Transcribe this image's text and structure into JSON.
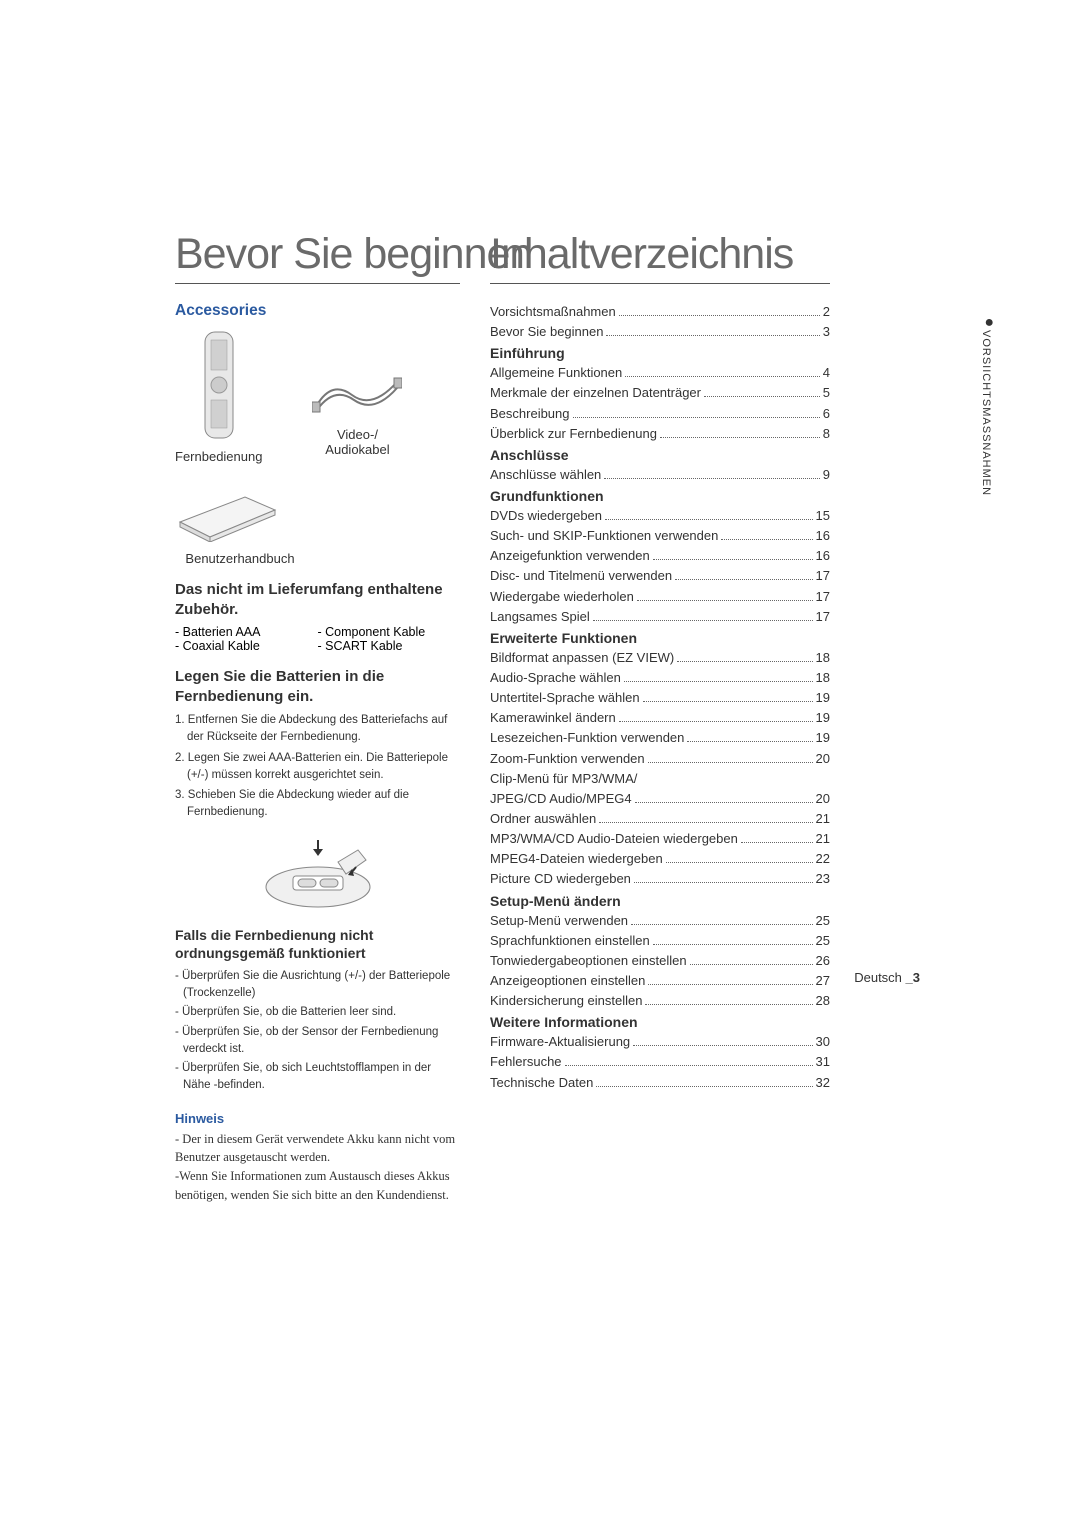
{
  "left": {
    "title": "Bevor Sie beginnen",
    "accessories_heading": "Accessories",
    "remote_label": "Fernbedienung",
    "cable_label1": "Video-/",
    "cable_label2": "Audiokabel",
    "manual_label": "Benutzerhandbuch",
    "not_included_heading": "Das nicht im Lieferumfang enthaltene Zubehör.",
    "not_included_col1": [
      "- Batterien AAA",
      "- Coaxial Kable"
    ],
    "not_included_col2": [
      "- Component Kable",
      "- SCART Kable"
    ],
    "battery_heading": "Legen Sie die Batterien in die Fernbedienung ein.",
    "battery_steps": [
      "1. Entfernen Sie die Abdeckung des Batteriefachs auf der Rückseite der Fernbedienung.",
      "2. Legen Sie zwei AAA-Batterien ein. Die Batteriepole (+/-) müssen korrekt ausgerichtet sein.",
      "3. Schieben Sie die Abdeckung wieder auf die Fernbedienung."
    ],
    "malfunction_heading": "Falls die Fernbedienung nicht ordnungsgemäß funktioniert",
    "malfunction_items": [
      "- Überprüfen Sie die Ausrichtung (+/-) der Batteriepole (Trockenzelle)",
      "- Überprüfen Sie, ob die Batterien leer sind.",
      "- Überprüfen Sie, ob der Sensor der Fernbedienung verdeckt ist.",
      "- Überprüfen Sie, ob sich Leuchtstofflampen in der Nähe -befinden."
    ],
    "hinweis_title": "Hinweis",
    "hinweis_body": [
      "- Der in diesem Gerät verwendete Akku kann nicht vom Benutzer ausgetauscht werden.",
      "-Wenn Sie Informationen zum Austausch dieses Akkus benötigen, wenden Sie sich bitte an den Kundendienst."
    ]
  },
  "right": {
    "title": "Inhaltverzeichnis",
    "toc": [
      {
        "type": "item",
        "label": "Vorsichtsmaßnahmen",
        "page": "2"
      },
      {
        "type": "item",
        "label": "Bevor Sie beginnen",
        "page": "3"
      },
      {
        "type": "heading",
        "label": "Einführung"
      },
      {
        "type": "item",
        "label": "Allgemeine Funktionen",
        "page": "4"
      },
      {
        "type": "item",
        "label": "Merkmale der einzelnen Datenträger",
        "page": "5"
      },
      {
        "type": "item",
        "label": "Beschreibung",
        "page": "6"
      },
      {
        "type": "item",
        "label": "Überblick zur Fernbedienung",
        "page": "8"
      },
      {
        "type": "heading",
        "label": "Anschlüsse"
      },
      {
        "type": "item",
        "label": "Anschlüsse wählen",
        "page": "9"
      },
      {
        "type": "heading",
        "label": "Grundfunktionen"
      },
      {
        "type": "item",
        "label": "DVDs wiedergeben",
        "page": "15"
      },
      {
        "type": "item",
        "label": "Such- und SKIP-Funktionen verwenden",
        "page": "16"
      },
      {
        "type": "item",
        "label": "Anzeigefunktion verwenden",
        "page": "16"
      },
      {
        "type": "item",
        "label": "Disc- und Titelmenü verwenden",
        "page": "17"
      },
      {
        "type": "item",
        "label": "Wiedergabe wiederholen",
        "page": "17"
      },
      {
        "type": "item",
        "label": "Langsames Spiel",
        "page": "17"
      },
      {
        "type": "heading",
        "label": "Erweiterte Funktionen"
      },
      {
        "type": "item",
        "label": "Bildformat anpassen (EZ VIEW)",
        "page": "18"
      },
      {
        "type": "item",
        "label": "Audio-Sprache wählen",
        "page": "18"
      },
      {
        "type": "item",
        "label": "Untertitel-Sprache wählen",
        "page": "19"
      },
      {
        "type": "item",
        "label": "Kamerawinkel ändern",
        "page": "19"
      },
      {
        "type": "item",
        "label": "Lesezeichen-Funktion verwenden",
        "page": "19"
      },
      {
        "type": "item",
        "label": "Zoom-Funktion verwenden",
        "page": "20"
      },
      {
        "type": "plain",
        "label": "Clip-Menü für MP3/WMA/"
      },
      {
        "type": "item",
        "label": "JPEG/CD Audio/MPEG4",
        "page": "20"
      },
      {
        "type": "item",
        "label": "Ordner auswählen",
        "page": "21"
      },
      {
        "type": "item",
        "label": "MP3/WMA/CD Audio-Dateien wiedergeben",
        "page": "21"
      },
      {
        "type": "item",
        "label": "MPEG4-Dateien wiedergeben",
        "page": "22"
      },
      {
        "type": "item",
        "label": "Picture CD wiedergeben",
        "page": "23"
      },
      {
        "type": "heading",
        "label": "Setup-Menü ändern"
      },
      {
        "type": "item",
        "label": "Setup-Menü verwenden",
        "page": "25"
      },
      {
        "type": "item",
        "label": "Sprachfunktionen einstellen",
        "page": "25"
      },
      {
        "type": "item",
        "label": "Tonwiedergabeoptionen einstellen",
        "page": "26"
      },
      {
        "type": "item",
        "label": "Anzeigeoptionen einstellen",
        "page": "27"
      },
      {
        "type": "item",
        "label": "Kindersicherung einstellen",
        "page": "28"
      },
      {
        "type": "heading",
        "label": "Weitere Informationen"
      },
      {
        "type": "item",
        "label": "Firmware-Aktualisierung",
        "page": "30"
      },
      {
        "type": "item",
        "label": "Fehlersuche",
        "page": "31"
      },
      {
        "type": "item",
        "label": "Technische Daten",
        "page": "32"
      }
    ]
  },
  "side_tab": "VORSIICHTSMASSNAHMEN",
  "footer_lang": "Deutsch ",
  "footer_page": "_3"
}
